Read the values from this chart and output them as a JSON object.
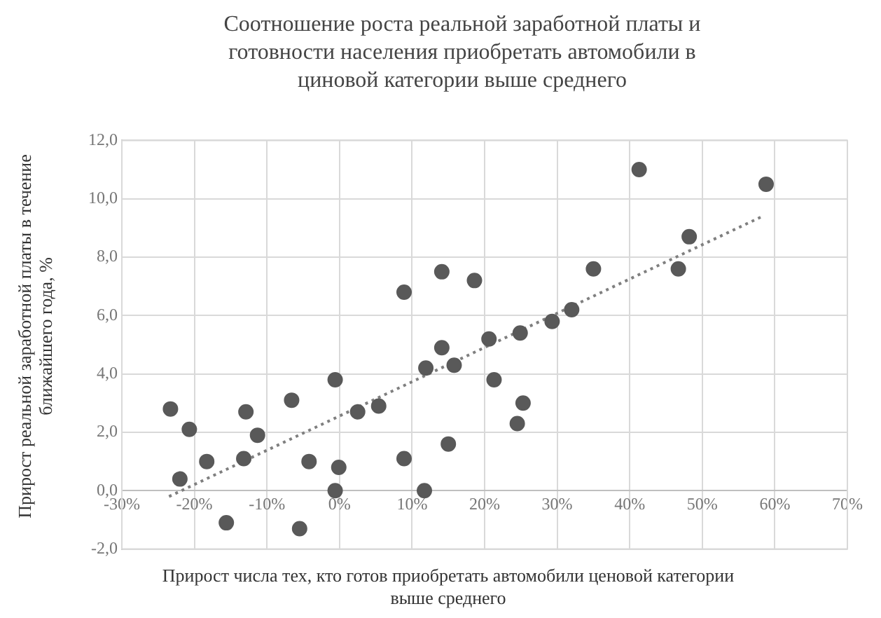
{
  "chart_data": {
    "type": "scatter",
    "title": "Соотношение роста реальной заработной платы и готовности населения приобретать автомобили в циновой категории выше среднего",
    "xlabel": "Прирост числа тех, кто готов приобретать автомобили ценовой категории выше среднего",
    "ylabel": "Прирост реальной заработной платы в течение ближайшего года, %",
    "xlim": [
      -30,
      70
    ],
    "xticks": [
      {
        "value": -30,
        "label": "-30%"
      },
      {
        "value": -20,
        "label": "-20%"
      },
      {
        "value": -10,
        "label": "-10%"
      },
      {
        "value": 0,
        "label": "0%"
      },
      {
        "value": 10,
        "label": "10%"
      },
      {
        "value": 20,
        "label": "20%"
      },
      {
        "value": 30,
        "label": "30%"
      },
      {
        "value": 40,
        "label": "40%"
      },
      {
        "value": 50,
        "label": "50%"
      },
      {
        "value": 60,
        "label": "60%"
      },
      {
        "value": 70,
        "label": "70%"
      }
    ],
    "ylim": [
      -2,
      12
    ],
    "yticks": [
      {
        "value": -2,
        "label": "-2,0"
      },
      {
        "value": 0,
        "label": "0,0"
      },
      {
        "value": 2,
        "label": "2,0"
      },
      {
        "value": 4,
        "label": "4,0"
      },
      {
        "value": 6,
        "label": "6,0"
      },
      {
        "value": 8,
        "label": "8,0"
      },
      {
        "value": 10,
        "label": "10,0"
      },
      {
        "value": 12,
        "label": "12,0"
      }
    ],
    "grid": true,
    "legend": false,
    "marker": "circle",
    "series": [
      {
        "color": "#595959",
        "x": [
          -23.3,
          -22.0,
          -20.7,
          -18.3,
          -15.6,
          -13.2,
          -12.9,
          -11.3,
          -6.6,
          -5.5,
          -4.2,
          -0.6,
          -0.6,
          -0.1,
          2.5,
          5.4,
          8.9,
          8.9,
          11.7,
          11.9,
          14.1,
          14.1,
          15.0,
          15.8,
          18.6,
          20.6,
          21.3,
          24.9,
          24.5,
          25.3,
          29.3,
          32.0,
          35.0,
          41.3,
          46.7,
          48.2,
          58.8
        ],
        "values": [
          2.8,
          0.4,
          2.1,
          1.0,
          -1.1,
          1.1,
          2.7,
          1.9,
          3.1,
          -1.3,
          1.0,
          3.8,
          0.0,
          0.8,
          2.7,
          2.9,
          6.8,
          1.1,
          0.0,
          4.2,
          4.9,
          7.5,
          1.6,
          4.3,
          7.2,
          5.2,
          3.8,
          5.4,
          2.3,
          3.0,
          5.8,
          6.2,
          7.6,
          11.0,
          7.6,
          8.7,
          10.5
        ]
      },
      {
        "type": "line",
        "color": "#7f7f7f",
        "line_style": "dotted",
        "marker": "none",
        "x": [
          -23.5,
          58.3
        ],
        "values": [
          -0.2,
          9.4
        ]
      }
    ]
  }
}
